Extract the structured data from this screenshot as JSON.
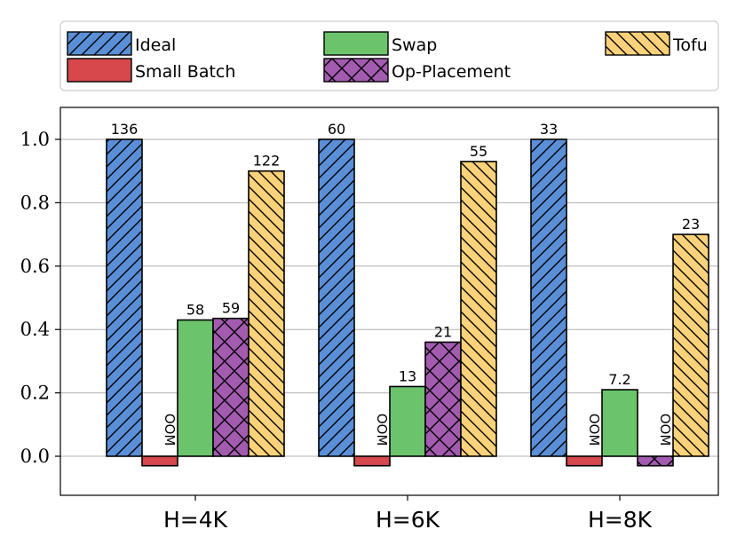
{
  "chart_data": {
    "type": "bar",
    "categories": [
      "H=4K",
      "H=6K",
      "H=8K"
    ],
    "ylim": [
      -0.12,
      1.1
    ],
    "yticks": [
      0.0,
      0.2,
      0.4,
      0.6,
      0.8,
      1.0
    ],
    "ytick_labels": [
      "0.0",
      "0.2",
      "0.4",
      "0.6",
      "0.8",
      "1.0"
    ],
    "grid": "y",
    "legend_position": "top",
    "oom_text": "OOM",
    "series": [
      {
        "name": "Ideal",
        "color": "#5A8FD8",
        "hatch": "forward",
        "values": [
          1.0,
          1.0,
          1.0
        ],
        "labels": [
          "136",
          "60",
          "33"
        ],
        "oom": [
          false,
          false,
          false
        ]
      },
      {
        "name": "Small Batch",
        "color": "#D6484C",
        "hatch": "none",
        "values": [
          -0.03,
          -0.03,
          -0.03
        ],
        "labels": [
          "",
          "",
          ""
        ],
        "oom": [
          true,
          true,
          true
        ]
      },
      {
        "name": "Swap",
        "color": "#6BC36B",
        "hatch": "none",
        "values": [
          0.43,
          0.22,
          0.21
        ],
        "labels": [
          "58",
          "13",
          "7.2"
        ],
        "oom": [
          false,
          false,
          false
        ]
      },
      {
        "name": "Op-Placement",
        "color": "#A35BB0",
        "hatch": "cross",
        "values": [
          0.435,
          0.36,
          -0.03
        ],
        "labels": [
          "59",
          "21",
          ""
        ],
        "oom": [
          false,
          false,
          true
        ]
      },
      {
        "name": "Tofu",
        "color": "#FBD27A",
        "hatch": "back",
        "values": [
          0.9,
          0.93,
          0.7
        ],
        "labels": [
          "122",
          "55",
          "23"
        ],
        "oom": [
          false,
          false,
          false
        ]
      }
    ]
  }
}
